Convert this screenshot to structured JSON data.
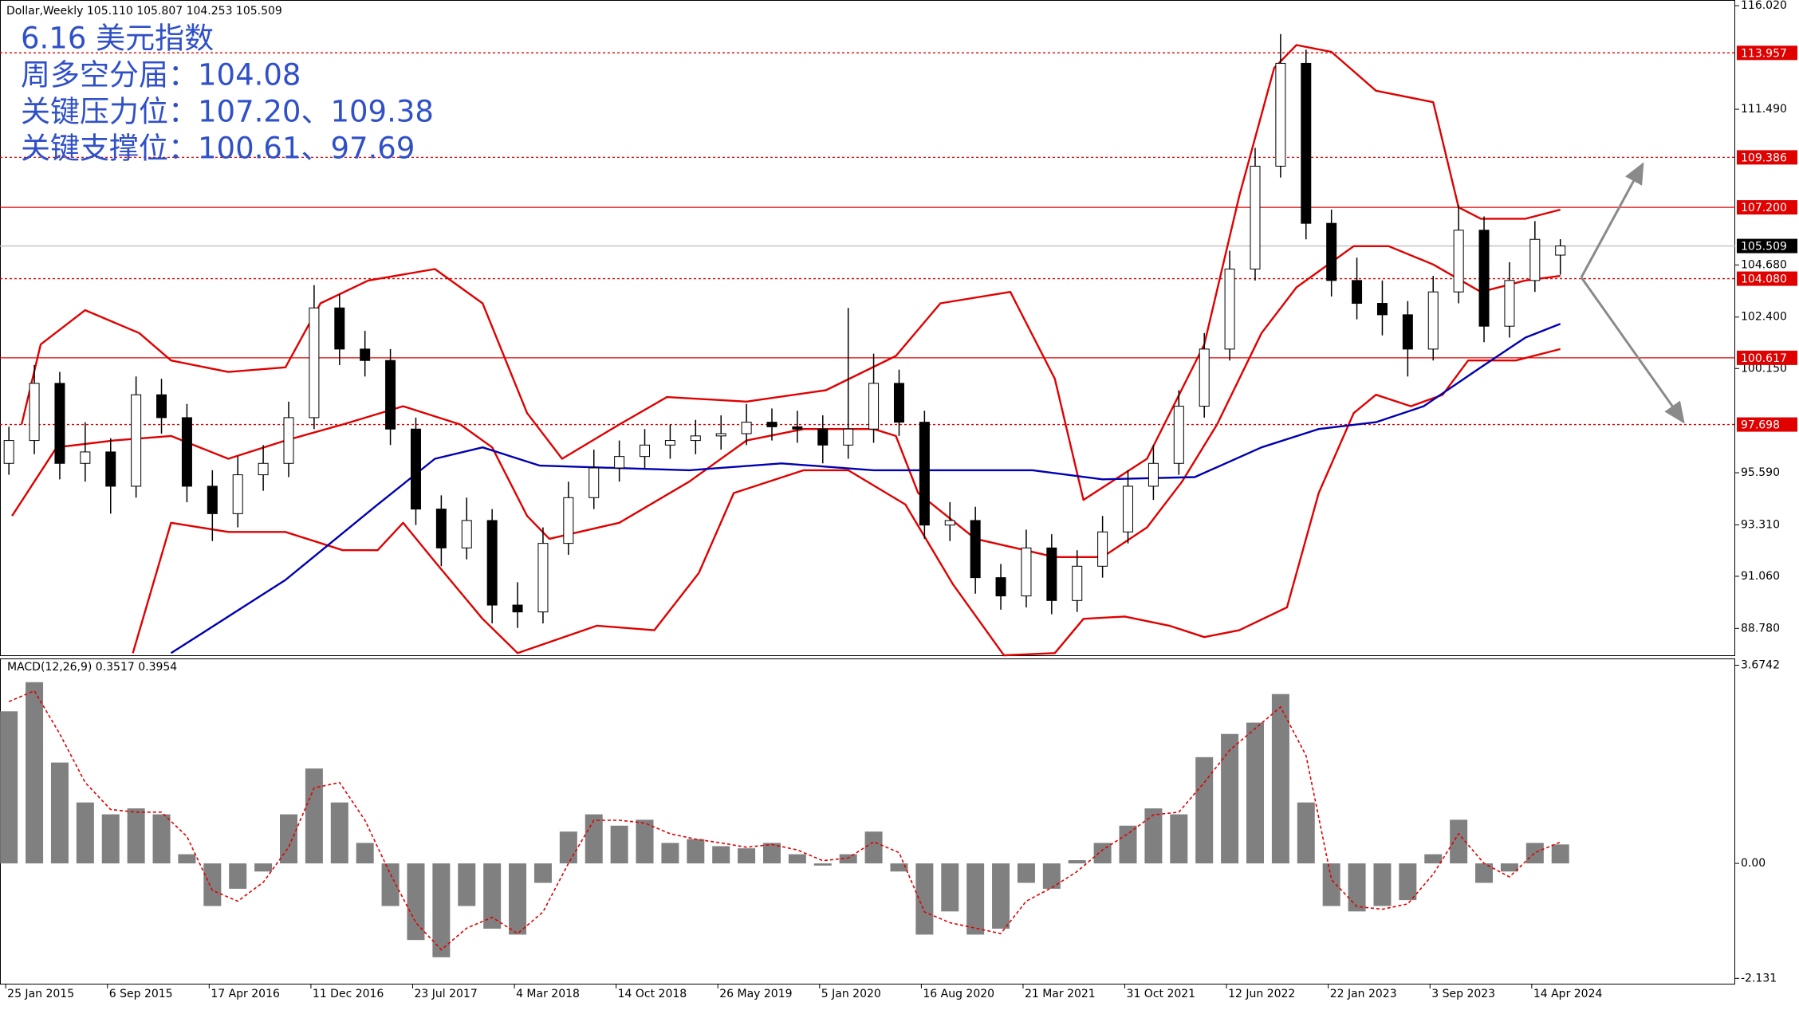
{
  "chart_data": [
    {
      "type": "candlestick",
      "title": "Dollar,Weekly  105.110 105.807 104.253 105.509",
      "annotations": [
        "6.16 美元指数",
        "周多空分届：104.08",
        "关键压力位：107.20、109.38",
        "关键支撑位：100.61、97.69"
      ],
      "x": [
        1,
        9,
        17,
        25,
        33,
        41,
        49,
        57,
        65,
        73,
        81,
        89,
        97,
        105,
        113,
        121,
        129,
        137,
        145,
        153,
        161,
        169,
        177,
        185,
        193,
        201,
        209,
        217,
        225,
        233,
        241,
        249,
        257,
        265,
        273,
        281,
        289,
        297,
        305,
        313,
        321,
        329,
        337,
        345,
        353,
        361,
        369,
        377,
        385,
        393,
        401,
        409,
        417,
        425,
        433,
        441,
        449,
        457,
        465,
        473,
        481,
        489
      ],
      "open": [
        96.0,
        97.0,
        99.5,
        96.0,
        96.5,
        95.0,
        99.0,
        98.0,
        95.0,
        93.8,
        95.5,
        96.0,
        98.0,
        102.8,
        101.0,
        100.5,
        97.5,
        94.0,
        92.3,
        93.5,
        89.8,
        89.5,
        92.5,
        94.5,
        95.8,
        96.3,
        96.8,
        97.0,
        97.2,
        97.3,
        97.8,
        97.6,
        97.5,
        96.8,
        97.5,
        99.5,
        97.8,
        93.3,
        93.5,
        91.0,
        90.2,
        92.3,
        90.0,
        91.5,
        93.0,
        95.0,
        96.0,
        98.5,
        101.0,
        104.5,
        109.0,
        113.5,
        106.5,
        104.0,
        103.0,
        102.5,
        101.0,
        103.5,
        106.2,
        102.0,
        104.0,
        105.11
      ],
      "high": [
        97.6,
        100.3,
        100.0,
        97.8,
        97.1,
        99.8,
        99.7,
        98.6,
        95.7,
        96.3,
        96.8,
        98.7,
        103.8,
        103.4,
        101.8,
        101.0,
        98.0,
        94.6,
        94.5,
        94.0,
        90.8,
        93.2,
        95.2,
        96.6,
        97.0,
        97.5,
        97.7,
        97.9,
        98.1,
        98.6,
        98.4,
        98.3,
        98.1,
        102.8,
        100.8,
        100.1,
        98.3,
        94.3,
        94.1,
        91.6,
        93.1,
        92.9,
        92.2,
        93.7,
        95.7,
        96.8,
        99.2,
        101.7,
        105.3,
        109.8,
        114.78,
        114.1,
        107.1,
        105.0,
        104.0,
        103.1,
        104.2,
        107.3,
        106.8,
        104.8,
        106.6,
        105.807
      ],
      "low": [
        95.5,
        96.4,
        95.3,
        95.2,
        93.8,
        94.5,
        97.3,
        94.3,
        92.6,
        93.2,
        94.8,
        95.4,
        97.5,
        100.3,
        99.8,
        96.8,
        93.3,
        91.5,
        91.8,
        89.0,
        88.8,
        89.0,
        92.0,
        94.0,
        95.2,
        95.8,
        96.2,
        96.4,
        96.6,
        96.8,
        97.0,
        96.9,
        96.0,
        96.2,
        96.9,
        97.2,
        92.7,
        92.6,
        90.3,
        89.6,
        89.7,
        89.4,
        89.5,
        91.0,
        92.5,
        94.4,
        95.5,
        98.0,
        100.5,
        104.0,
        108.5,
        105.8,
        103.3,
        102.3,
        101.6,
        99.8,
        100.5,
        103.0,
        101.3,
        101.5,
        103.5,
        104.253
      ],
      "close": [
        97.0,
        99.5,
        96.0,
        96.5,
        95.0,
        99.0,
        98.0,
        95.0,
        93.8,
        95.5,
        96.0,
        98.0,
        102.8,
        101.0,
        100.5,
        97.5,
        94.0,
        92.3,
        93.5,
        89.8,
        89.5,
        92.5,
        94.5,
        95.8,
        96.3,
        96.8,
        97.0,
        97.2,
        97.3,
        97.8,
        97.6,
        97.5,
        96.8,
        97.5,
        99.5,
        97.8,
        93.3,
        93.5,
        91.0,
        90.2,
        92.3,
        90.0,
        91.5,
        93.0,
        95.0,
        96.0,
        98.5,
        101.0,
        104.5,
        109.0,
        113.5,
        106.5,
        104.0,
        103.0,
        102.5,
        101.0,
        103.5,
        106.2,
        102.0,
        104.0,
        105.8,
        105.509
      ],
      "up_color": "#ffffff",
      "down_color": "#000000",
      "lines": [
        {
          "color": "#e00000",
          "x": [
            5,
            11,
            25,
            42,
            52,
            70,
            88,
            99,
            114,
            135,
            150,
            164,
            175,
            193,
            208,
            233,
            258,
            280,
            294,
            316,
            330,
            339,
            359,
            377,
            388,
            399,
            406,
            417,
            431,
            449,
            457,
            464,
            478,
            489
          ],
          "values": [
            97.7,
            101.2,
            102.7,
            101.7,
            100.5,
            100.0,
            100.2,
            103.0,
            104.0,
            104.5,
            103.0,
            98.2,
            96.2,
            97.7,
            98.9,
            98.7,
            99.2,
            100.7,
            103.0,
            103.5,
            99.7,
            94.4,
            96.2,
            101.2,
            107.7,
            113.3,
            114.3,
            114.0,
            112.3,
            111.8,
            107.2,
            106.7,
            106.7,
            107.1
          ]
        },
        {
          "color": "#e00000",
          "x": [
            2,
            16,
            34,
            52,
            70,
            88,
            106,
            125,
            143,
            153,
            164,
            171,
            193,
            215,
            233,
            251,
            273,
            280,
            287,
            305,
            330,
            345,
            359,
            370,
            381,
            395,
            406,
            424,
            435,
            449,
            464,
            478,
            489
          ],
          "values": [
            93.7,
            96.7,
            97.0,
            97.2,
            96.2,
            97.0,
            97.7,
            98.5,
            97.7,
            96.7,
            93.7,
            92.7,
            93.4,
            95.2,
            97.0,
            97.5,
            97.5,
            97.2,
            94.7,
            92.7,
            91.9,
            91.9,
            93.2,
            95.2,
            97.7,
            101.7,
            103.7,
            105.5,
            105.5,
            104.7,
            103.5,
            104.0,
            104.2
          ]
        },
        {
          "color": "#e00000",
          "x": [
            40,
            52,
            70,
            88,
            106,
            117,
            125,
            135,
            150,
            161,
            186,
            204,
            218,
            229,
            251,
            265,
            283,
            298,
            314,
            330,
            339,
            352,
            366,
            377,
            388,
            403,
            413,
            424,
            431,
            442,
            452,
            460,
            475,
            489
          ],
          "values": [
            87.7,
            93.4,
            93.0,
            93.0,
            92.2,
            92.2,
            93.4,
            91.7,
            89.2,
            87.7,
            88.9,
            88.7,
            91.2,
            94.7,
            95.7,
            95.7,
            94.2,
            90.7,
            87.6,
            87.7,
            89.2,
            89.3,
            88.9,
            88.4,
            88.7,
            89.7,
            94.7,
            98.2,
            99.0,
            98.5,
            99.0,
            100.5,
            100.5,
            101.0
          ]
        },
        {
          "color": "#0000b0",
          "x": [
            52,
            88,
            117,
            135,
            150,
            168,
            215,
            244,
            273,
            323,
            345,
            374,
            395,
            413,
            431,
            446,
            464,
            478,
            489
          ],
          "values": [
            87.7,
            90.9,
            94.2,
            96.2,
            96.7,
            95.9,
            95.7,
            96.0,
            95.7,
            95.7,
            95.3,
            95.4,
            96.7,
            97.5,
            97.8,
            98.5,
            100.2,
            101.5,
            102.1
          ]
        }
      ],
      "levels": [
        {
          "value": 113.957,
          "label": "113.957",
          "color": "#e00000",
          "dashed": true
        },
        {
          "value": 109.386,
          "label": "109.386",
          "color": "#e00000",
          "dashed": true
        },
        {
          "value": 107.2,
          "label": "107.200",
          "color": "#e00000",
          "dashed": false
        },
        {
          "value": 105.509,
          "label": "105.509",
          "color": "#000000",
          "dashed": false
        },
        {
          "value": 104.08,
          "label": "104.080",
          "color": "#e00000",
          "dashed": true
        },
        {
          "value": 100.617,
          "label": "100.617",
          "color": "#e00000",
          "dashed": false
        },
        {
          "value": 97.698,
          "label": "97.698",
          "color": "#e00000",
          "dashed": true
        }
      ],
      "xlim": [
        -1.8,
        544
      ],
      "ylim": [
        87.57,
        116.27
      ],
      "yticks": [
        {
          "value": 116.02,
          "label": "116.020"
        },
        {
          "value": 111.49,
          "label": "111.490"
        },
        {
          "value": 104.68,
          "label": "104.680"
        },
        {
          "value": 102.4,
          "label": "102.400"
        },
        {
          "value": 100.15,
          "label": "100.150"
        },
        {
          "value": 95.59,
          "label": "95.590"
        },
        {
          "value": 93.31,
          "label": "93.310"
        },
        {
          "value": 91.06,
          "label": "91.060"
        },
        {
          "value": 88.78,
          "label": "88.780"
        }
      ]
    },
    {
      "type": "macd",
      "title": "MACD(12,26,9) 0.3517 0.3954",
      "x": [
        1,
        9,
        17,
        25,
        33,
        41,
        49,
        57,
        65,
        73,
        81,
        89,
        97,
        105,
        113,
        121,
        129,
        137,
        145,
        153,
        161,
        169,
        177,
        185,
        193,
        201,
        209,
        217,
        225,
        233,
        241,
        249,
        257,
        265,
        273,
        281,
        289,
        297,
        305,
        313,
        321,
        329,
        337,
        345,
        353,
        361,
        369,
        377,
        385,
        393,
        401,
        409,
        417,
        425,
        433,
        441,
        449,
        457,
        465,
        473,
        481,
        489
      ],
      "histogram": [
        2.82,
        3.36,
        1.87,
        1.13,
        0.91,
        1.02,
        0.91,
        0.17,
        -0.79,
        -0.47,
        -0.15,
        0.91,
        1.76,
        1.13,
        0.38,
        -0.79,
        -1.42,
        -1.74,
        -0.79,
        -1.21,
        -1.32,
        -0.36,
        0.59,
        0.91,
        0.7,
        0.81,
        0.38,
        0.45,
        0.32,
        0.28,
        0.38,
        0.17,
        -0.04,
        0.17,
        0.59,
        -0.15,
        -1.32,
        -0.89,
        -1.32,
        -1.21,
        -0.36,
        -0.47,
        0.06,
        0.38,
        0.7,
        1.02,
        0.91,
        1.97,
        2.4,
        2.61,
        3.14,
        1.13,
        -0.79,
        -0.89,
        -0.79,
        -0.68,
        0.17,
        0.81,
        -0.36,
        -0.15,
        0.38,
        0.3517
      ],
      "signal": [
        3.0,
        3.2,
        2.4,
        1.5,
        1.0,
        0.95,
        0.95,
        0.5,
        -0.5,
        -0.7,
        -0.35,
        0.3,
        1.4,
        1.5,
        0.8,
        -0.2,
        -1.1,
        -1.6,
        -1.2,
        -1.0,
        -1.3,
        -0.9,
        0.0,
        0.8,
        0.8,
        0.75,
        0.55,
        0.45,
        0.38,
        0.3,
        0.35,
        0.25,
        0.05,
        0.1,
        0.4,
        0.2,
        -0.9,
        -1.1,
        -1.2,
        -1.3,
        -0.7,
        -0.45,
        -0.15,
        0.25,
        0.55,
        0.9,
        0.95,
        1.5,
        2.1,
        2.5,
        2.9,
        2.0,
        -0.3,
        -0.8,
        -0.85,
        -0.75,
        -0.2,
        0.55,
        0.0,
        -0.25,
        0.2,
        0.3954
      ],
      "hist_color": "#808080",
      "signal_color": "#e00000",
      "xlim": [
        -1.8,
        544
      ],
      "ylim": [
        -2.23,
        3.8
      ],
      "yticks": [
        3.6742,
        {
          "value": 0,
          "label": "0.00"
        },
        -2.131
      ],
      "xticks": [
        {
          "value": 0,
          "label": "25 Jan 2015"
        },
        {
          "value": 32,
          "label": "6 Sep 2015"
        },
        {
          "value": 64,
          "label": "17 Apr 2016"
        },
        {
          "value": 96,
          "label": "11 Dec 2016"
        },
        {
          "value": 128,
          "label": "23 Jul 2017"
        },
        {
          "value": 160,
          "label": "4 Mar 2018"
        },
        {
          "value": 192,
          "label": "14 Oct 2018"
        },
        {
          "value": 224,
          "label": "26 May 2019"
        },
        {
          "value": 256,
          "label": "5 Jan 2020"
        },
        {
          "value": 288,
          "label": "16 Aug 2020"
        },
        {
          "value": 320,
          "label": "21 Mar 2021"
        },
        {
          "value": 352,
          "label": "31 Oct 2021"
        },
        {
          "value": 384,
          "label": "12 Jun 2022"
        },
        {
          "value": 416,
          "label": "22 Jan 2023"
        },
        {
          "value": 448,
          "label": "3 Sep 2023"
        },
        {
          "value": 480,
          "label": "14 Apr 2024"
        }
      ]
    }
  ]
}
